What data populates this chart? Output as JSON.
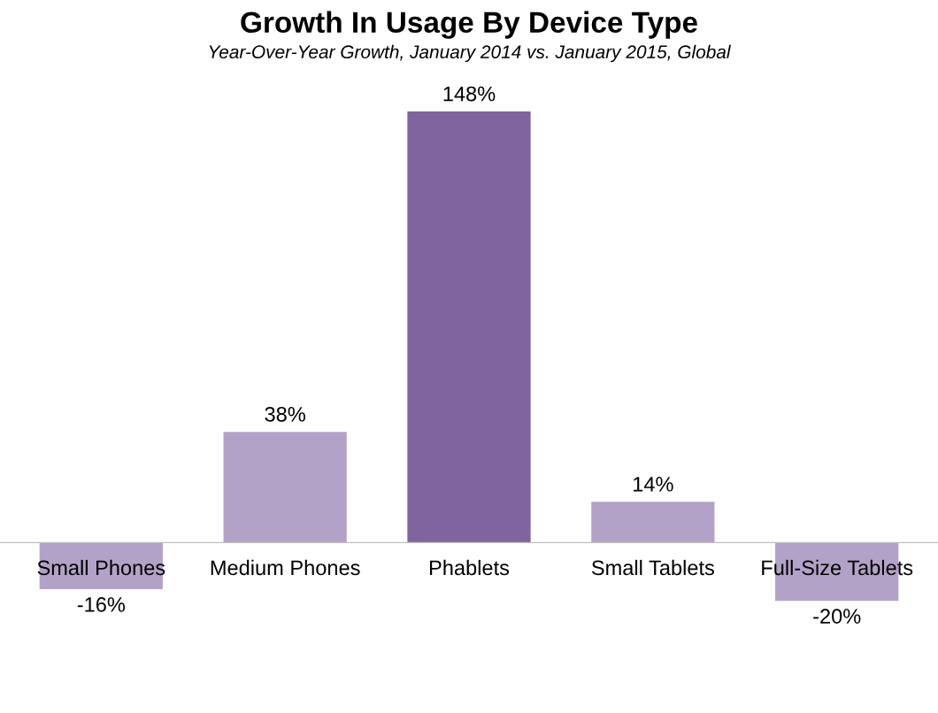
{
  "chart_data": {
    "type": "bar",
    "title": "Growth In Usage By Device Type",
    "subtitle": "Year-Over-Year Growth, January 2014 vs. January 2015, Global",
    "categories": [
      "Small Phones",
      "Medium Phones",
      "Phablets",
      "Small Tablets",
      "Full-Size Tablets"
    ],
    "values": [
      -16,
      38,
      148,
      14,
      -20
    ],
    "colors": [
      "#b3a2c8",
      "#b3a2c8",
      "#7f64a0",
      "#b3a2c8",
      "#b3a2c8"
    ],
    "value_labels": [
      "-16%",
      "38%",
      "148%",
      "14%",
      "-20%"
    ],
    "grid": false,
    "legend": false
  }
}
